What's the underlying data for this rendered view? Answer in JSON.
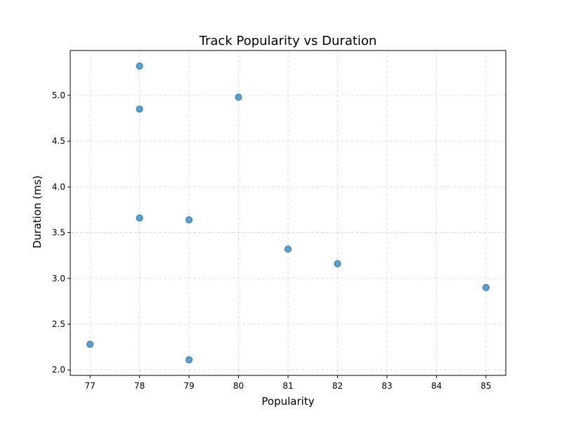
{
  "chart_data": {
    "type": "scatter",
    "title": "Track Popularity vs Duration",
    "xlabel": "Popularity",
    "ylabel": "Duration (ms)",
    "xlim": [
      76.6,
      85.4
    ],
    "ylim": [
      1.94,
      5.49
    ],
    "x_ticks": [
      77,
      78,
      79,
      80,
      81,
      82,
      83,
      84,
      85
    ],
    "x_tick_labels": [
      "77",
      "78",
      "79",
      "80",
      "81",
      "82",
      "83",
      "84",
      "85"
    ],
    "y_ticks": [
      2.0,
      2.5,
      3.0,
      3.5,
      4.0,
      4.5,
      5.0
    ],
    "y_tick_labels": [
      "2.0",
      "2.5",
      "3.0",
      "3.5",
      "4.0",
      "4.5",
      "5.0"
    ],
    "grid": true,
    "point_color": "#1f77b4",
    "points": [
      {
        "x": 77,
        "y": 2.28
      },
      {
        "x": 78,
        "y": 5.32
      },
      {
        "x": 78,
        "y": 4.85
      },
      {
        "x": 78,
        "y": 3.66
      },
      {
        "x": 79,
        "y": 3.64
      },
      {
        "x": 79,
        "y": 2.11
      },
      {
        "x": 80,
        "y": 4.98
      },
      {
        "x": 81,
        "y": 3.32
      },
      {
        "x": 82,
        "y": 3.16
      },
      {
        "x": 85,
        "y": 2.9
      }
    ]
  }
}
